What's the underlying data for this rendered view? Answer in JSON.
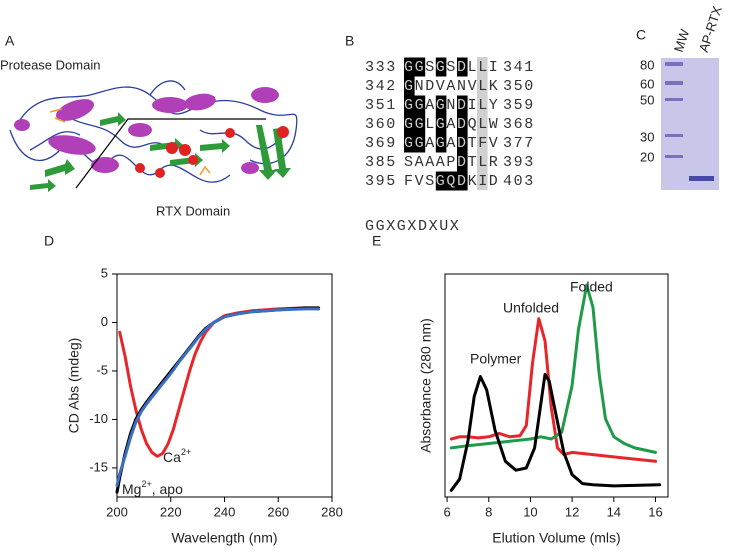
{
  "panel_labels": [
    "A",
    "B",
    "C",
    "D",
    "E"
  ],
  "structure": {
    "protease_label": "Protease Domain",
    "rtx_label": "RTX Domain"
  },
  "alignment": {
    "rows": [
      {
        "start": 333,
        "seq": "GGSGSDLLI",
        "end": 341
      },
      {
        "start": 342,
        "seq": "GNDVANVLK",
        "end": 350
      },
      {
        "start": 351,
        "seq": "GGAGNDILY",
        "end": 359
      },
      {
        "start": 360,
        "seq": "GGLGADQLW",
        "end": 368
      },
      {
        "start": 369,
        "seq": "GGAGADTFV",
        "end": 377
      },
      {
        "start": 385,
        "seq": "SAAAPDTLR",
        "end": 393
      },
      {
        "start": 395,
        "seq": "FVSGQDKID",
        "end": 403
      }
    ],
    "consensus": "GGXGXDXUX"
  },
  "gel": {
    "lanes": [
      "MW",
      "AP-RTX"
    ],
    "markers": [
      80,
      60,
      50,
      30,
      20
    ]
  },
  "chart_data": [
    {
      "type": "line",
      "x_label": "Wavelength (nm)",
      "y_label": "CD Abs (mdeg)",
      "x": [
        200,
        201,
        203,
        205,
        207,
        209,
        211,
        213,
        215,
        217,
        219,
        221,
        223,
        225,
        227,
        229,
        231,
        233,
        236,
        240,
        245,
        250,
        260,
        270,
        275
      ],
      "series": [
        {
          "color": "#e8262a",
          "values": [
            null,
            -1,
            -3.5,
            -6.5,
            -9,
            -11,
            -12.5,
            -13.4,
            -13.8,
            -13.5,
            -12.5,
            -11,
            -9,
            -7,
            -5,
            -3.3,
            -2,
            -1,
            0,
            0.7,
            1,
            1.2,
            1.4,
            1.5,
            1.4
          ]
        },
        {
          "color": "#000000",
          "values": [
            -17.5,
            -16,
            -13.5,
            -11.5,
            -10,
            -9,
            -8.2,
            -7.5,
            -6.8,
            -6.1,
            -5.4,
            -4.7,
            -4,
            -3.3,
            -2.6,
            -1.9,
            -1.2,
            -0.6,
            0,
            0.6,
            0.9,
            1.1,
            1.3,
            1.5,
            1.5
          ]
        },
        {
          "color": "#3a6fc4",
          "values": [
            -16.8,
            -15.6,
            -13.8,
            -11.9,
            -10.3,
            -9.2,
            -8.4,
            -7.7,
            -7,
            -6.3,
            -5.6,
            -4.9,
            -4.1,
            -3.4,
            -2.7,
            -2,
            -1.3,
            -0.7,
            0,
            0.6,
            0.9,
            1.1,
            1.3,
            1.4,
            1.4
          ]
        }
      ],
      "xlim": [
        200,
        280
      ],
      "xticks": [
        200,
        220,
        240,
        260,
        280
      ],
      "ylim": [
        -18,
        5
      ],
      "yticks": [
        -15,
        -10,
        -5,
        0,
        5
      ],
      "annotations": [
        {
          "text": "Ca",
          "sup": "2+"
        },
        {
          "text": "Mg",
          "sup": "2+",
          "rest": ", apo"
        }
      ]
    },
    {
      "type": "line",
      "x_label": "Elution Volume (mls)",
      "y_label": "Absorbance (280 nm)",
      "series": [
        {
          "color": "#e8262a",
          "x": [
            6.2,
            6.6,
            7,
            7.5,
            8,
            8.5,
            9,
            9.5,
            9.8,
            10.1,
            10.4,
            10.7,
            11,
            11.3,
            11.6,
            12,
            12.5,
            13,
            14,
            15,
            16
          ],
          "values": [
            26,
            27,
            27,
            26.5,
            27,
            28.5,
            27,
            27.5,
            32,
            60,
            80,
            70,
            40,
            22,
            19,
            20,
            19.5,
            19,
            18,
            17,
            16
          ]
        },
        {
          "color": "#1f9a48",
          "x": [
            6.2,
            7,
            8,
            9,
            9.5,
            10,
            10.5,
            11,
            11.5,
            12,
            12.3,
            12.7,
            13,
            13.3,
            13.6,
            14,
            14.5,
            15,
            16
          ],
          "values": [
            22,
            23,
            24,
            25,
            25.5,
            26,
            27,
            26,
            29,
            50,
            75,
            95,
            85,
            55,
            35,
            27,
            24,
            22,
            20
          ]
        },
        {
          "color": "#000000",
          "x": [
            6.2,
            6.6,
            7,
            7.3,
            7.6,
            7.9,
            8.3,
            8.8,
            9.3,
            9.8,
            10.2,
            10.5,
            10.7,
            10.9,
            11.2,
            11.6,
            12,
            12.5,
            13,
            14,
            15,
            16.2
          ],
          "values": [
            3,
            8,
            25,
            45,
            54,
            48,
            30,
            16,
            12,
            13,
            22,
            42,
            55,
            52,
            38,
            20,
            10,
            6,
            5.5,
            5,
            5.2,
            5.5
          ]
        }
      ],
      "xlim": [
        5.9,
        16.6
      ],
      "xticks": [
        6,
        8,
        10,
        12,
        14,
        16
      ],
      "ylim": [
        0,
        100
      ],
      "annotations": [
        "Polymer",
        "Unfolded",
        "Folded"
      ]
    }
  ]
}
